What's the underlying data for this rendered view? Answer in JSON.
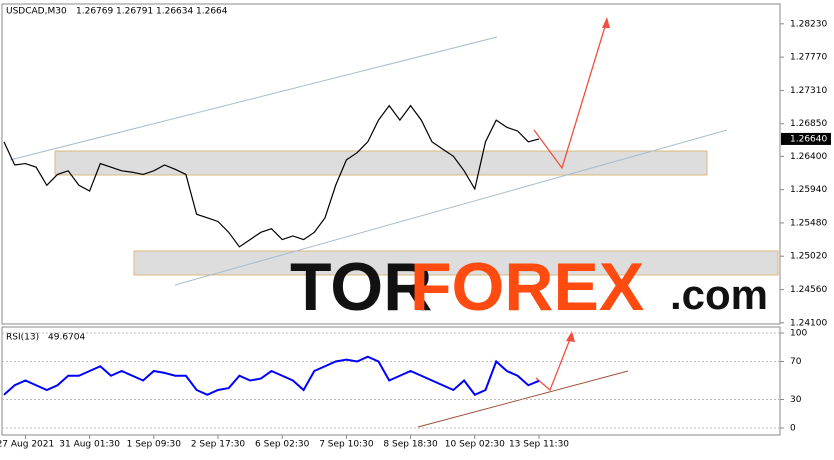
{
  "header": {
    "symbol": "USDCAD,M30",
    "ohlc": [
      1.26769,
      1.26791,
      1.26634,
      1.2664
    ]
  },
  "watermark": {
    "left": "TOR",
    "mid": "FOREX",
    "right": ".com"
  },
  "chart_data": [
    {
      "type": "line",
      "series": [
        {
          "name": "USDCAD",
          "color": "#000000",
          "values": [
            1.266,
            1.2628,
            1.263,
            1.2625,
            1.26,
            1.2615,
            1.262,
            1.26,
            1.2592,
            1.263,
            1.2625,
            1.262,
            1.2618,
            1.2615,
            1.262,
            1.2628,
            1.2622,
            1.2615,
            1.256,
            1.2555,
            1.255,
            1.2535,
            1.2515,
            1.2525,
            1.2535,
            1.254,
            1.2525,
            1.253,
            1.2525,
            1.2535,
            1.2555,
            1.26,
            1.2635,
            1.2645,
            1.266,
            1.269,
            1.271,
            1.269,
            1.271,
            1.269,
            1.266,
            1.265,
            1.264,
            1.262,
            1.2595,
            1.266,
            1.269,
            1.268,
            1.2675,
            1.266,
            1.2664
          ]
        }
      ],
      "last_price": {
        "value": 1.2664,
        "label": "1.26640"
      },
      "ylim": [
        1.2407,
        1.2849
      ],
      "yticks": [
        {
          "value": 1.2823,
          "label": "1.28230"
        },
        {
          "value": 1.2777,
          "label": "1.27770"
        },
        {
          "value": 1.2731,
          "label": "1.27310"
        },
        {
          "value": 1.2685,
          "label": "1.26850"
        },
        {
          "value": 1.264,
          "label": "1.26400"
        },
        {
          "value": 1.2594,
          "label": "1.25940"
        },
        {
          "value": 1.2548,
          "label": "1.25480"
        },
        {
          "value": 1.2502,
          "label": "1.25020"
        },
        {
          "value": 1.2456,
          "label": "1.24560"
        },
        {
          "value": 1.241,
          "label": "1.24100"
        }
      ]
    },
    {
      "type": "line",
      "title": "RSI(13)",
      "last_value": 49.6704,
      "categories": [
        null,
        null,
        "27 Aug 2021",
        null,
        null,
        null,
        null,
        null,
        "31 Aug 01:30",
        null,
        null,
        null,
        null,
        null,
        "1 Sep 09:30",
        null,
        null,
        null,
        null,
        null,
        "2 Sep 17:30",
        null,
        null,
        null,
        null,
        null,
        "6 Sep 02:30",
        null,
        null,
        null,
        null,
        null,
        "7 Sep 10:30",
        null,
        null,
        null,
        null,
        null,
        "8 Sep 18:30",
        null,
        null,
        null,
        null,
        null,
        "10 Sep 02:30",
        null,
        null,
        null,
        null,
        null,
        "13 Sep 11:30"
      ],
      "series": [
        {
          "name": "RSI",
          "color": "#0000ff",
          "values": [
            35,
            45,
            50,
            45,
            40,
            45,
            55,
            55,
            60,
            65,
            55,
            60,
            55,
            50,
            60,
            58,
            55,
            55,
            40,
            35,
            40,
            42,
            55,
            50,
            52,
            60,
            55,
            50,
            40,
            60,
            65,
            70,
            72,
            70,
            75,
            70,
            50,
            55,
            60,
            55,
            50,
            45,
            40,
            50,
            35,
            40,
            70,
            60,
            55,
            45,
            49.6704
          ]
        }
      ],
      "ylim": [
        0,
        100
      ],
      "yticks": [
        0,
        30,
        70,
        100
      ]
    }
  ]
}
